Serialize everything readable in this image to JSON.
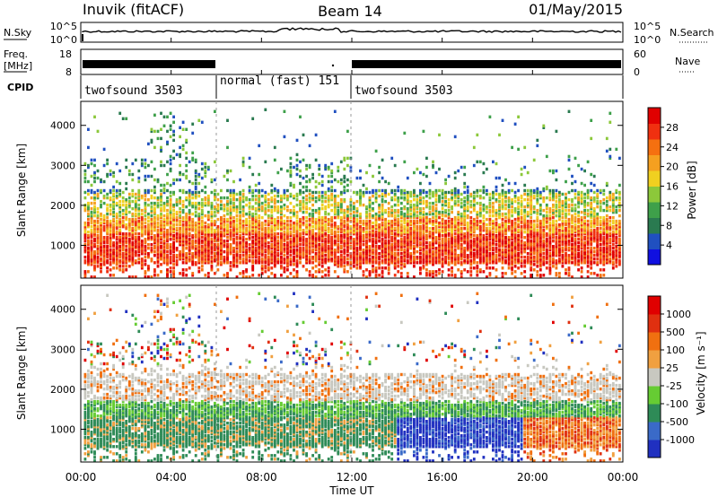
{
  "header": {
    "station": "Inuvik (fitACF)",
    "beam": "Beam 14",
    "date": "01/May/2015"
  },
  "strip_labels": {
    "nsky": "N.Sky",
    "nsky_ticks": [
      "10^5",
      "10^0"
    ],
    "nsearch": "N.Search",
    "nsearch_ticks": [
      "10^5",
      "10^0"
    ],
    "freq_line1": "Freq.",
    "freq_line2": "[MHz]",
    "freq_ticks": [
      "18",
      "8"
    ],
    "nave": "Nave",
    "nave_ticks": [
      "60",
      "0"
    ],
    "cpid": "CPID"
  },
  "cpid_segments": [
    {
      "label": "twofsound 3503",
      "start_h": 0,
      "end_h": 6
    },
    {
      "label": "normal (fast) 151",
      "start_h": 6,
      "end_h": 12
    },
    {
      "label": "twofsound 3503",
      "start_h": 12,
      "end_h": 24
    }
  ],
  "chart_data": [
    {
      "type": "heatmap",
      "name": "power",
      "ylabel": "Slant Range [km]",
      "xlim_hours": [
        0,
        24
      ],
      "ylim_km": [
        180,
        4600
      ],
      "yticks": [
        "1000",
        "2000",
        "3000",
        "4000"
      ],
      "colorbar_label": "Power [dB]",
      "colorbar_ticks": [
        "28",
        "24",
        "20",
        "16",
        "12",
        "8",
        "4"
      ],
      "colors": [
        "#1010e0",
        "#2050c0",
        "#2a7a50",
        "#3ea04a",
        "#8cc83a",
        "#f0d020",
        "#f5a020",
        "#f57010",
        "#f03010",
        "#e00000"
      ]
    },
    {
      "type": "heatmap",
      "name": "velocity",
      "ylabel": "Slant Range [km]",
      "xlabel": "Time UT",
      "xlim_hours": [
        0,
        24
      ],
      "ylim_km": [
        180,
        4600
      ],
      "yticks": [
        "1000",
        "2000",
        "3000",
        "4000"
      ],
      "xticks": [
        "00:00",
        "04:00",
        "08:00",
        "12:00",
        "16:00",
        "20:00",
        "00:00"
      ],
      "colorbar_label": "Velocity [m s⁻¹]",
      "colorbar_ticks": [
        "1000",
        "500",
        "100",
        "25",
        "-25",
        "-100",
        "-500",
        "-1000"
      ],
      "colors": [
        "#2030c0",
        "#3a6ac8",
        "#2e8b57",
        "#66cc33",
        "#c8c8c0",
        "#f0a040",
        "#f07010",
        "#e03010",
        "#e00000"
      ]
    }
  ]
}
